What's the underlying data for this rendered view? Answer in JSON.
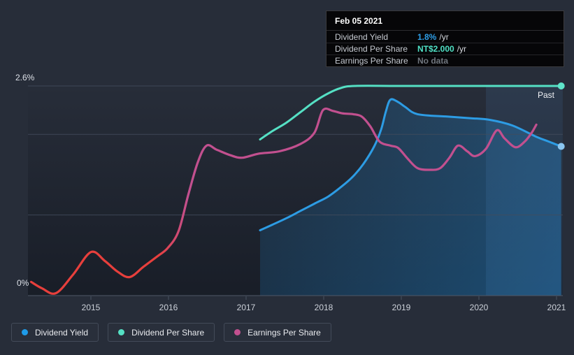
{
  "tooltip": {
    "date": "Feb 05 2021",
    "rows": [
      {
        "label": "Dividend Yield",
        "value": "1.8%",
        "suffix": "/yr",
        "value_color": "#2e9fe8"
      },
      {
        "label": "Dividend Per Share",
        "value": "NT$2.000",
        "suffix": "/yr",
        "value_color": "#4fe0c4"
      },
      {
        "label": "Earnings Per Share",
        "value": "No data",
        "suffix": "",
        "value_color": "#70767e"
      }
    ]
  },
  "labels": {
    "past": "Past",
    "y_top": "2.6%",
    "y_bottom": "0%"
  },
  "legend": [
    {
      "label": "Dividend Yield",
      "color": "#1e9be8"
    },
    {
      "label": "Dividend Per Share",
      "color": "#55e0c4"
    },
    {
      "label": "Earnings Per Share",
      "color": "#c2508f"
    }
  ],
  "colors": {
    "background": "#272d39",
    "tooltip_bg": "#060608",
    "grid": "#434c5c",
    "axis": "#4f5867",
    "past_band": "#5c9ae0",
    "area_fill": "#2196e8"
  },
  "chart_data": {
    "type": "line",
    "title": "Dividend history (yield, dividend per share, earnings per share) — hover at Feb 05 2021",
    "x_axis": {
      "ticks": [
        2015,
        2016,
        2017,
        2018,
        2019,
        2020,
        2021
      ],
      "range": [
        2014.15,
        2021.08
      ]
    },
    "y_axis": {
      "unit": "%",
      "range": [
        0,
        2.6
      ],
      "gridlines_pct": [
        0,
        1,
        2,
        2.6
      ],
      "label_top": "2.6%",
      "label_bottom": "0%",
      "grid_on": true
    },
    "past_band": {
      "from": 2020.09,
      "to": 2021.08
    },
    "legend_position": "bottom-left",
    "series": [
      {
        "name": "Dividend Yield",
        "unit": "%",
        "color": "#2d9ce4",
        "axis_scale_to_pct": 1,
        "area": true,
        "end_dot": true,
        "dot_color": "#8ac6f0",
        "points": [
          [
            2017.18,
            0.81
          ],
          [
            2017.34,
            0.88
          ],
          [
            2017.52,
            0.96
          ],
          [
            2017.7,
            1.05
          ],
          [
            2017.88,
            1.14
          ],
          [
            2018.06,
            1.23
          ],
          [
            2018.24,
            1.36
          ],
          [
            2018.38,
            1.48
          ],
          [
            2018.51,
            1.63
          ],
          [
            2018.65,
            1.85
          ],
          [
            2018.74,
            2.06
          ],
          [
            2018.8,
            2.28
          ],
          [
            2018.86,
            2.43
          ],
          [
            2018.96,
            2.4
          ],
          [
            2019.05,
            2.34
          ],
          [
            2019.21,
            2.25
          ],
          [
            2019.59,
            2.22
          ],
          [
            2019.9,
            2.2
          ],
          [
            2020.14,
            2.18
          ],
          [
            2020.43,
            2.11
          ],
          [
            2020.74,
            1.97
          ],
          [
            2020.9,
            1.91
          ],
          [
            2021.06,
            1.85
          ]
        ]
      },
      {
        "name": "Dividend Per Share",
        "unit": "NT$",
        "color": "#55e0c4",
        "axis_scale_to_pct": 1.3,
        "area": false,
        "end_dot": true,
        "dot_color": "#5fe5ca",
        "points": [
          [
            2017.18,
            1.49
          ],
          [
            2017.34,
            1.57
          ],
          [
            2017.52,
            1.65
          ],
          [
            2017.7,
            1.75
          ],
          [
            2017.88,
            1.85
          ],
          [
            2018.06,
            1.93
          ],
          [
            2018.22,
            1.98
          ],
          [
            2018.4,
            2.0
          ],
          [
            2019.0,
            2.0
          ],
          [
            2020.0,
            2.0
          ],
          [
            2021.06,
            2.0
          ]
        ]
      },
      {
        "name": "Earnings Per Share",
        "unit": "unlabeled scale (values given in %-axis units)",
        "color": "#c2508f",
        "axis_scale_to_pct": 1,
        "area": false,
        "end_dot": false,
        "gradient_stops": [
          {
            "offset": 0,
            "color": "#e73f3c"
          },
          {
            "offset": 0.25,
            "color": "#e73f3c"
          },
          {
            "offset": 0.31,
            "color": "#c2508f"
          },
          {
            "offset": 1,
            "color": "#c2508f"
          }
        ],
        "points": [
          [
            2014.23,
            0.17
          ],
          [
            2014.37,
            0.09
          ],
          [
            2014.55,
            0.03
          ],
          [
            2014.77,
            0.26
          ],
          [
            2015.0,
            0.54
          ],
          [
            2015.18,
            0.43
          ],
          [
            2015.34,
            0.3
          ],
          [
            2015.5,
            0.23
          ],
          [
            2015.68,
            0.36
          ],
          [
            2015.86,
            0.49
          ],
          [
            2015.99,
            0.59
          ],
          [
            2016.13,
            0.8
          ],
          [
            2016.26,
            1.27
          ],
          [
            2016.38,
            1.66
          ],
          [
            2016.49,
            1.86
          ],
          [
            2016.62,
            1.81
          ],
          [
            2016.8,
            1.74
          ],
          [
            2016.95,
            1.71
          ],
          [
            2017.16,
            1.76
          ],
          [
            2017.43,
            1.79
          ],
          [
            2017.7,
            1.88
          ],
          [
            2017.88,
            2.02
          ],
          [
            2017.99,
            2.3
          ],
          [
            2018.12,
            2.29
          ],
          [
            2018.24,
            2.26
          ],
          [
            2018.38,
            2.25
          ],
          [
            2018.49,
            2.22
          ],
          [
            2018.6,
            2.1
          ],
          [
            2018.72,
            1.91
          ],
          [
            2018.86,
            1.86
          ],
          [
            2018.96,
            1.83
          ],
          [
            2019.08,
            1.7
          ],
          [
            2019.21,
            1.58
          ],
          [
            2019.37,
            1.56
          ],
          [
            2019.5,
            1.58
          ],
          [
            2019.62,
            1.71
          ],
          [
            2019.73,
            1.86
          ],
          [
            2019.85,
            1.79
          ],
          [
            2019.95,
            1.73
          ],
          [
            2020.09,
            1.82
          ],
          [
            2020.23,
            2.05
          ],
          [
            2020.33,
            1.95
          ],
          [
            2020.47,
            1.84
          ],
          [
            2020.59,
            1.91
          ],
          [
            2020.68,
            2.02
          ],
          [
            2020.74,
            2.12
          ]
        ]
      }
    ]
  }
}
